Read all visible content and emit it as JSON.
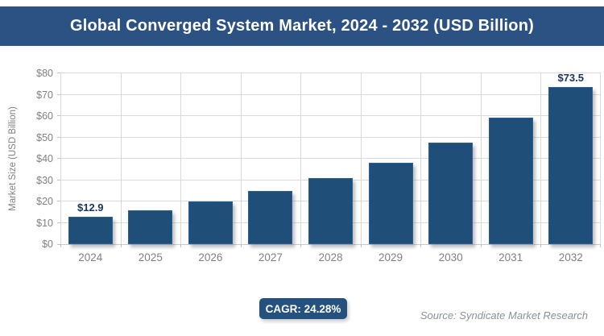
{
  "title": "Global Converged System Market, 2024 - 2032 (USD Billion)",
  "chart_data": {
    "type": "bar",
    "categories": [
      "2024",
      "2025",
      "2026",
      "2027",
      "2028",
      "2029",
      "2030",
      "2031",
      "2032"
    ],
    "values": [
      12.9,
      16.0,
      19.9,
      24.8,
      30.8,
      38.2,
      47.5,
      59.1,
      73.5
    ],
    "point_labels": [
      "$12.9",
      "",
      "",
      "",
      "",
      "",
      "",
      "",
      "$73.5"
    ],
    "title": "Global Converged System Market, 2024 - 2032 (USD Billion)",
    "xlabel": "",
    "ylabel": "Market Size (USD Billion)",
    "ylim": [
      0,
      80
    ],
    "ytick_step": 10,
    "ytick_labels": [
      "$0",
      "$10",
      "$20",
      "$30",
      "$40",
      "$50",
      "$60",
      "$70",
      "$80"
    ],
    "grid": "horizontal and vertical gridlines on",
    "legend": "none",
    "bar_color": "#1F4E79"
  },
  "footer": {
    "cagr_label": "CAGR: 24.28%",
    "source": "Source: Syndicate Market Research"
  },
  "colors": {
    "title_bar_bg": "#2B5283",
    "title_text": "#FFFFFF",
    "bar_fill": "#1F4E79",
    "bar_edge": "#2A6099",
    "badge_bg": "#24517E",
    "gridline": "#D9D9D9",
    "axis_text": "#808080",
    "data_label_text": "#17365D",
    "source_text": "#8A9199"
  }
}
